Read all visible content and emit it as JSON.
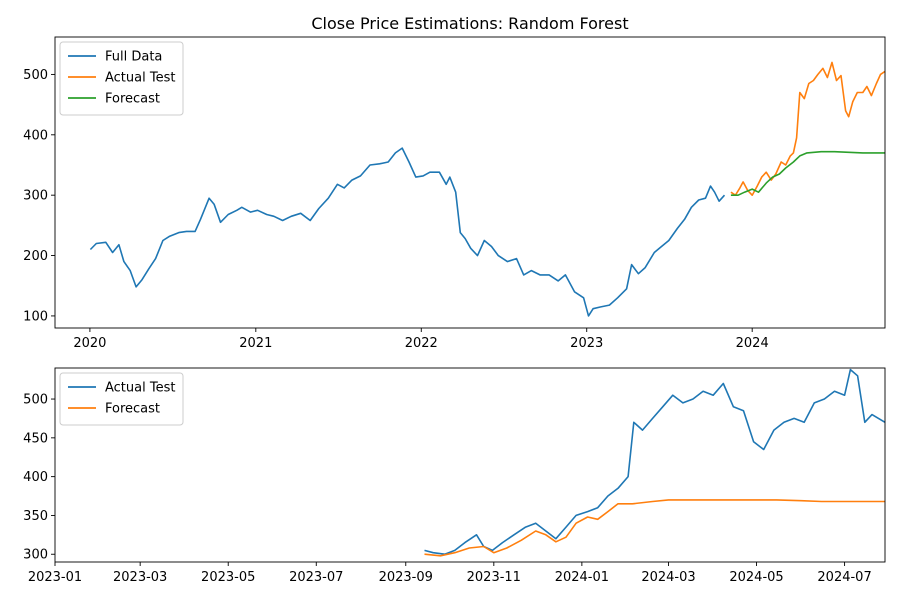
{
  "chart_data": [
    {
      "type": "line",
      "title": "Close Price Estimations: Random Forest",
      "xlabel": "",
      "ylabel": "",
      "x_axis_type": "date",
      "xlim": [
        "2019-10-16",
        "2024-10-20"
      ],
      "ylim": [
        80,
        562
      ],
      "x_ticks": [
        "2020-01-01",
        "2021-01-01",
        "2022-01-01",
        "2023-01-01",
        "2024-01-01"
      ],
      "x_tick_labels": [
        "2020",
        "2021",
        "2022",
        "2023",
        "2024"
      ],
      "y_ticks": [
        100,
        200,
        300,
        400,
        500
      ],
      "legend_position": "upper left",
      "grid": false,
      "series": [
        {
          "name": "Full Data",
          "color": "#1f77b4",
          "points": [
            [
              "2020-01-02",
              210
            ],
            [
              "2020-01-15",
              220
            ],
            [
              "2020-02-05",
              222
            ],
            [
              "2020-02-20",
              205
            ],
            [
              "2020-03-05",
              218
            ],
            [
              "2020-03-16",
              190
            ],
            [
              "2020-03-30",
              175
            ],
            [
              "2020-04-12",
              148
            ],
            [
              "2020-04-25",
              160
            ],
            [
              "2020-05-10",
              178
            ],
            [
              "2020-05-25",
              195
            ],
            [
              "2020-06-10",
              225
            ],
            [
              "2020-06-25",
              232
            ],
            [
              "2020-07-15",
              238
            ],
            [
              "2020-08-01",
              240
            ],
            [
              "2020-08-20",
              240
            ],
            [
              "2020-09-01",
              260
            ],
            [
              "2020-09-20",
              295
            ],
            [
              "2020-10-01",
              285
            ],
            [
              "2020-10-15",
              255
            ],
            [
              "2020-11-01",
              268
            ],
            [
              "2020-11-20",
              275
            ],
            [
              "2020-12-01",
              280
            ],
            [
              "2020-12-20",
              272
            ],
            [
              "2021-01-05",
              275
            ],
            [
              "2021-01-25",
              268
            ],
            [
              "2021-02-10",
              265
            ],
            [
              "2021-03-01",
              258
            ],
            [
              "2021-03-20",
              265
            ],
            [
              "2021-04-10",
              270
            ],
            [
              "2021-05-01",
              258
            ],
            [
              "2021-05-20",
              278
            ],
            [
              "2021-06-10",
              295
            ],
            [
              "2021-06-30",
              318
            ],
            [
              "2021-07-15",
              312
            ],
            [
              "2021-08-01",
              325
            ],
            [
              "2021-08-20",
              332
            ],
            [
              "2021-09-10",
              350
            ],
            [
              "2021-10-01",
              352
            ],
            [
              "2021-10-20",
              355
            ],
            [
              "2021-11-05",
              370
            ],
            [
              "2021-11-20",
              378
            ],
            [
              "2021-12-05",
              355
            ],
            [
              "2021-12-20",
              330
            ],
            [
              "2022-01-05",
              332
            ],
            [
              "2022-01-20",
              338
            ],
            [
              "2022-02-10",
              338
            ],
            [
              "2022-02-25",
              318
            ],
            [
              "2022-03-05",
              330
            ],
            [
              "2022-03-18",
              305
            ],
            [
              "2022-03-28",
              238
            ],
            [
              "2022-04-08",
              228
            ],
            [
              "2022-04-20",
              212
            ],
            [
              "2022-05-05",
              200
            ],
            [
              "2022-05-20",
              225
            ],
            [
              "2022-06-05",
              215
            ],
            [
              "2022-06-20",
              200
            ],
            [
              "2022-07-10",
              190
            ],
            [
              "2022-07-30",
              195
            ],
            [
              "2022-08-15",
              168
            ],
            [
              "2022-09-01",
              175
            ],
            [
              "2022-09-20",
              168
            ],
            [
              "2022-10-10",
              168
            ],
            [
              "2022-10-30",
              158
            ],
            [
              "2022-11-15",
              168
            ],
            [
              "2022-12-05",
              140
            ],
            [
              "2022-12-25",
              130
            ],
            [
              "2023-01-05",
              100
            ],
            [
              "2023-01-15",
              112
            ],
            [
              "2023-02-01",
              115
            ],
            [
              "2023-02-20",
              118
            ],
            [
              "2023-03-10",
              130
            ],
            [
              "2023-03-30",
              145
            ],
            [
              "2023-04-10",
              185
            ],
            [
              "2023-04-25",
              170
            ],
            [
              "2023-05-10",
              180
            ],
            [
              "2023-05-30",
              205
            ],
            [
              "2023-06-15",
              215
            ],
            [
              "2023-07-01",
              225
            ],
            [
              "2023-07-20",
              245
            ],
            [
              "2023-08-05",
              260
            ],
            [
              "2023-08-20",
              280
            ],
            [
              "2023-09-05",
              292
            ],
            [
              "2023-09-20",
              295
            ],
            [
              "2023-10-01",
              315
            ],
            [
              "2023-10-10",
              305
            ],
            [
              "2023-10-20",
              290
            ],
            [
              "2023-11-01",
              300
            ]
          ]
        },
        {
          "name": "Actual Test",
          "color": "#ff7f0e",
          "points": [
            [
              "2023-11-15",
              305
            ],
            [
              "2023-11-25",
              300
            ],
            [
              "2023-12-05",
              312
            ],
            [
              "2023-12-12",
              322
            ],
            [
              "2023-12-22",
              308
            ],
            [
              "2024-01-01",
              300
            ],
            [
              "2024-01-12",
              315
            ],
            [
              "2024-01-22",
              330
            ],
            [
              "2024-02-01",
              338
            ],
            [
              "2024-02-12",
              325
            ],
            [
              "2024-02-22",
              335
            ],
            [
              "2024-03-05",
              355
            ],
            [
              "2024-03-15",
              350
            ],
            [
              "2024-03-25",
              365
            ],
            [
              "2024-04-01",
              370
            ],
            [
              "2024-04-08",
              395
            ],
            [
              "2024-04-15",
              470
            ],
            [
              "2024-04-25",
              460
            ],
            [
              "2024-05-05",
              485
            ],
            [
              "2024-05-15",
              490
            ],
            [
              "2024-05-25",
              500
            ],
            [
              "2024-06-05",
              510
            ],
            [
              "2024-06-15",
              495
            ],
            [
              "2024-06-25",
              520
            ],
            [
              "2024-07-05",
              490
            ],
            [
              "2024-07-15",
              498
            ],
            [
              "2024-07-25",
              440
            ],
            [
              "2024-08-01",
              430
            ],
            [
              "2024-08-10",
              455
            ],
            [
              "2024-08-20",
              470
            ],
            [
              "2024-09-01",
              470
            ],
            [
              "2024-09-10",
              480
            ],
            [
              "2024-09-20",
              465
            ],
            [
              "2024-10-01",
              485
            ],
            [
              "2024-10-10",
              500
            ],
            [
              "2024-10-20",
              505
            ]
          ]
        },
        {
          "name": "Forecast",
          "color": "#2ca02c",
          "points": [
            [
              "2023-11-15",
              300
            ],
            [
              "2023-12-01",
              300
            ],
            [
              "2023-12-15",
              305
            ],
            [
              "2024-01-01",
              310
            ],
            [
              "2024-01-15",
              305
            ],
            [
              "2024-02-01",
              320
            ],
            [
              "2024-02-15",
              330
            ],
            [
              "2024-03-01",
              335
            ],
            [
              "2024-03-15",
              345
            ],
            [
              "2024-04-01",
              355
            ],
            [
              "2024-04-15",
              365
            ],
            [
              "2024-05-01",
              370
            ],
            [
              "2024-06-01",
              372
            ],
            [
              "2024-07-01",
              372
            ],
            [
              "2024-08-01",
              371
            ],
            [
              "2024-09-01",
              370
            ],
            [
              "2024-10-01",
              370
            ],
            [
              "2024-10-20",
              370
            ]
          ]
        }
      ]
    },
    {
      "type": "line",
      "title": "",
      "xlabel": "",
      "ylabel": "",
      "x_axis_type": "date",
      "xlim": [
        "2023-01-01",
        "2024-07-29"
      ],
      "ylim": [
        290,
        540
      ],
      "x_ticks": [
        "2023-01-01",
        "2023-03-01",
        "2023-05-01",
        "2023-07-01",
        "2023-09-01",
        "2023-11-01",
        "2024-01-01",
        "2024-03-01",
        "2024-05-01",
        "2024-07-01"
      ],
      "x_tick_labels": [
        "2023-01",
        "2023-03",
        "2023-05",
        "2023-07",
        "2023-09",
        "2023-11",
        "2024-01",
        "2024-03",
        "2024-05",
        "2024-07"
      ],
      "y_ticks": [
        300,
        350,
        400,
        450,
        500
      ],
      "legend_position": "upper left",
      "grid": false,
      "series": [
        {
          "name": "Actual Test",
          "color": "#1f77b4",
          "points": [
            [
              "2023-09-14",
              305
            ],
            [
              "2023-09-20",
              302
            ],
            [
              "2023-09-28",
              300
            ],
            [
              "2023-10-05",
              305
            ],
            [
              "2023-10-12",
              315
            ],
            [
              "2023-10-20",
              325
            ],
            [
              "2023-10-25",
              310
            ],
            [
              "2023-10-31",
              305
            ],
            [
              "2023-11-07",
              315
            ],
            [
              "2023-11-15",
              325
            ],
            [
              "2023-11-23",
              335
            ],
            [
              "2023-11-30",
              340
            ],
            [
              "2023-12-07",
              330
            ],
            [
              "2023-12-14",
              320
            ],
            [
              "2023-12-21",
              335
            ],
            [
              "2023-12-28",
              350
            ],
            [
              "2024-01-05",
              355
            ],
            [
              "2024-01-12",
              360
            ],
            [
              "2024-01-19",
              375
            ],
            [
              "2024-01-26",
              385
            ],
            [
              "2024-02-02",
              400
            ],
            [
              "2024-02-06",
              470
            ],
            [
              "2024-02-12",
              460
            ],
            [
              "2024-02-19",
              475
            ],
            [
              "2024-02-26",
              490
            ],
            [
              "2024-03-04",
              505
            ],
            [
              "2024-03-11",
              495
            ],
            [
              "2024-03-18",
              500
            ],
            [
              "2024-03-25",
              510
            ],
            [
              "2024-04-01",
              505
            ],
            [
              "2024-04-08",
              520
            ],
            [
              "2024-04-15",
              490
            ],
            [
              "2024-04-22",
              485
            ],
            [
              "2024-04-29",
              445
            ],
            [
              "2024-05-06",
              435
            ],
            [
              "2024-05-13",
              460
            ],
            [
              "2024-05-20",
              470
            ],
            [
              "2024-05-27",
              475
            ],
            [
              "2024-06-03",
              470
            ],
            [
              "2024-06-10",
              495
            ],
            [
              "2024-06-17",
              500
            ],
            [
              "2024-06-24",
              510
            ],
            [
              "2024-07-01",
              505
            ],
            [
              "2024-07-05",
              538
            ],
            [
              "2024-07-10",
              530
            ],
            [
              "2024-07-15",
              470
            ],
            [
              "2024-07-20",
              480
            ],
            [
              "2024-07-29",
              470
            ]
          ]
        },
        {
          "name": "Forecast",
          "color": "#ff7f0e",
          "points": [
            [
              "2023-09-14",
              300
            ],
            [
              "2023-09-25",
              298
            ],
            [
              "2023-10-05",
              302
            ],
            [
              "2023-10-15",
              308
            ],
            [
              "2023-10-25",
              310
            ],
            [
              "2023-11-01",
              302
            ],
            [
              "2023-11-10",
              308
            ],
            [
              "2023-11-20",
              318
            ],
            [
              "2023-11-30",
              330
            ],
            [
              "2023-12-07",
              325
            ],
            [
              "2023-12-14",
              316
            ],
            [
              "2023-12-21",
              322
            ],
            [
              "2023-12-28",
              340
            ],
            [
              "2024-01-05",
              348
            ],
            [
              "2024-01-12",
              345
            ],
            [
              "2024-01-19",
              355
            ],
            [
              "2024-01-26",
              365
            ],
            [
              "2024-02-05",
              365
            ],
            [
              "2024-02-19",
              368
            ],
            [
              "2024-03-01",
              370
            ],
            [
              "2024-04-01",
              370
            ],
            [
              "2024-05-01",
              370
            ],
            [
              "2024-05-15",
              370
            ],
            [
              "2024-06-01",
              369
            ],
            [
              "2024-06-15",
              368
            ],
            [
              "2024-07-01",
              368
            ],
            [
              "2024-07-29",
              368
            ]
          ]
        }
      ]
    }
  ]
}
